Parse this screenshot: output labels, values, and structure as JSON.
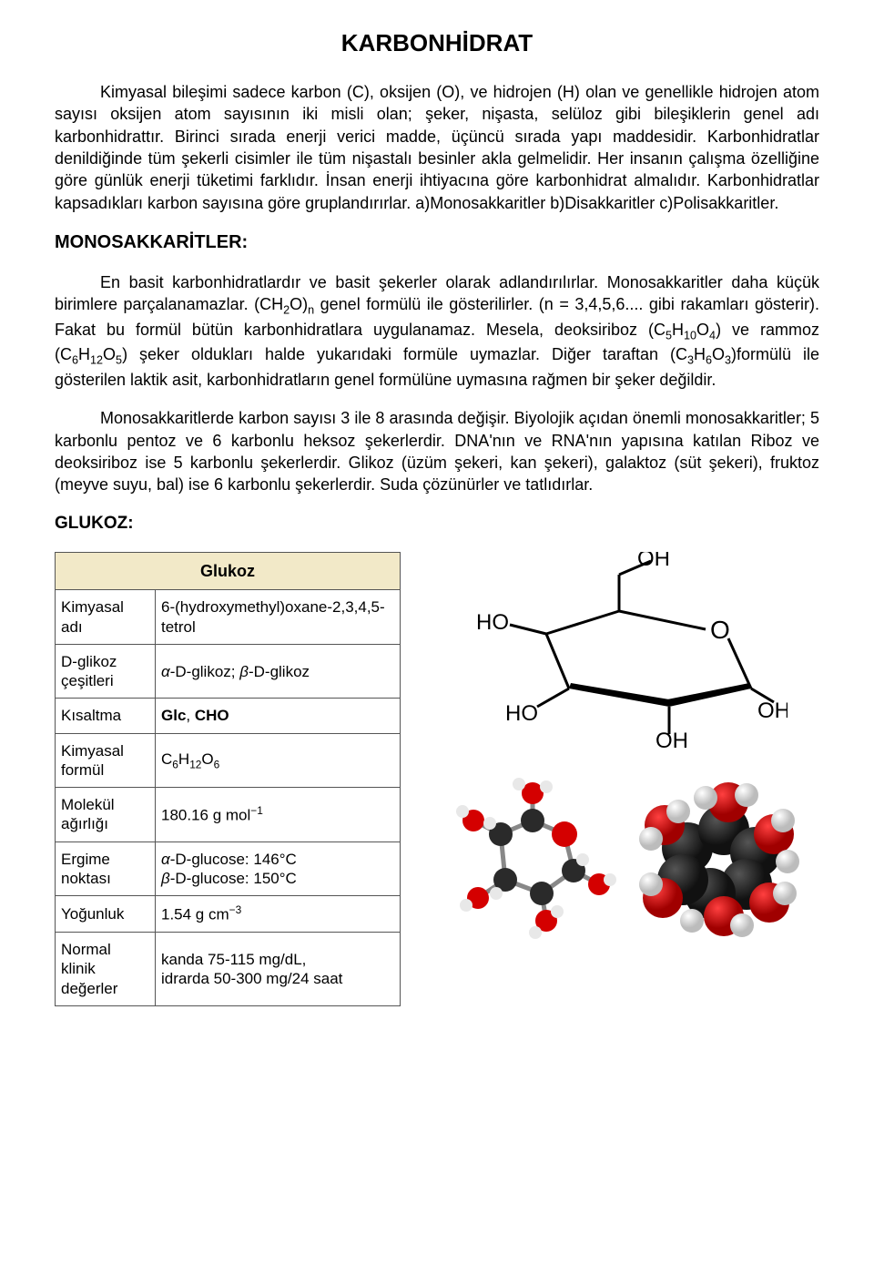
{
  "title": "KARBONHİDRAT",
  "para1": "Kimyasal bileşimi sadece karbon (C), oksijen (O), ve hidrojen (H) olan ve genellikle hidrojen atom sayısı oksijen atom sayısının iki misli olan; şeker, nişasta, selüloz gibi bileşiklerin genel adı karbonhidrattır. Birinci sırada enerji verici madde, üçüncü sırada yapı maddesidir. Karbonhidratlar denildiğinde tüm şekerli cisimler ile tüm nişastalı besinler akla gelmelidir. Her insanın çalışma özelliğine göre günlük enerji tüketimi farklıdır. İnsan enerji ihtiyacına göre karbonhidrat almalıdır. Karbonhidratlar kapsadıkları karbon sayısına göre gruplandırırlar. a)Monosakkaritler b)Disakkaritler c)Polisakkaritler.",
  "heading_mono": "MONOSAKKARİTLER:",
  "para_mono1_a": "En basit karbonhidratlardır ve basit şekerler olarak adlandırılırlar. Monosakkaritler daha küçük birimlere parçalanamazlar. (CH",
  "para_mono1_b": "O)",
  "para_mono1_c": " genel formülü ile gösterilirler. (n = 3,4,5,6.... gibi rakamları gösterir). Fakat bu formül bütün karbonhidratlara uygulanamaz. Mesela, deoksiriboz (C",
  "para_mono1_d": "H",
  "para_mono1_e": "O",
  "para_mono1_f": ") ve rammoz (C",
  "para_mono1_g": "H",
  "para_mono1_h": "O",
  "para_mono1_i": ") şeker oldukları halde yukarıdaki formüle uymazlar. Diğer taraftan (C",
  "para_mono1_j": "H",
  "para_mono1_k": "O",
  "para_mono1_l": ")formülü ile gösterilen laktik asit, karbonhidratların genel formülüne uymasına rağmen bir şeker değildir.",
  "para_mono2": "Monosakkaritlerde karbon sayısı 3 ile 8 arasında değişir. Biyolojik açıdan önemli monosakkaritler; 5 karbonlu pentoz ve 6 karbonlu heksoz şekerlerdir. DNA'nın ve RNA'nın yapısına katılan Riboz ve deoksiriboz ise 5 karbonlu şekerlerdir. Glikoz (üzüm şekeri, kan şekeri), galaktoz (süt şekeri), fruktoz (meyve suyu, bal) ise 6 karbonlu şekerlerdir. Suda çözünürler ve tatlıdırlar.",
  "heading_glukoz": "GLUKOZ:",
  "table": {
    "title": "Glukoz",
    "rows": [
      {
        "label": "Kimyasal adı",
        "value_html": "6-(hydroxymethyl)oxane-2,3,4,5-tetrol"
      },
      {
        "label": "D-glikoz çeşitleri",
        "value_html": "<span class='italic'>α</span>-<span class='smallcaps'>D</span>-glikoz; <span class='italic'>β</span>-<span class='smallcaps'>D</span>-glikoz",
        "label_smallcaps_first": true
      },
      {
        "label": "Kısaltma",
        "value_html": "<span class='bold'>Glc</span>, <span class='bold'>CHO</span>"
      },
      {
        "label": "Kimyasal formül",
        "value_html": "C<span class='subsc'>6</span>H<span class='subsc'>12</span>O<span class='subsc'>6</span>"
      },
      {
        "label": "Molekül ağırlığı",
        "value_html": "180.16 g mol<span class='sup'>−1</span>"
      },
      {
        "label": "Ergime noktası",
        "value_html": "<span class='italic'>α</span>-<span class='smallcaps'>D</span>-glucose: 146°C<br><span class='italic'>β</span>-<span class='smallcaps'>D</span>-glucose: 150°C"
      },
      {
        "label": "Yoğunluk",
        "value_html": "1.54 g cm<span class='sup'>−3</span>"
      },
      {
        "label": "Normal klinik değerler",
        "value_html": "kanda 75-115 mg/dL,<br>idrarda 50-300 mg/24 saat"
      }
    ]
  },
  "colors": {
    "table_header_bg": "#f2e9c8",
    "border": "#555555",
    "carbon": "#2a2a2a",
    "oxygen": "#d40000",
    "hydrogen": "#e8e8e8",
    "bond": "#000000"
  },
  "subscripts": {
    "ch2o_2": "2",
    "ch2o_n": "n",
    "deoxy_c": "5",
    "deoxy_h": "10",
    "deoxy_o": "4",
    "ram_c": "6",
    "ram_h": "12",
    "ram_o": "5",
    "lac_c": "3",
    "lac_h": "6",
    "lac_o": "3"
  }
}
